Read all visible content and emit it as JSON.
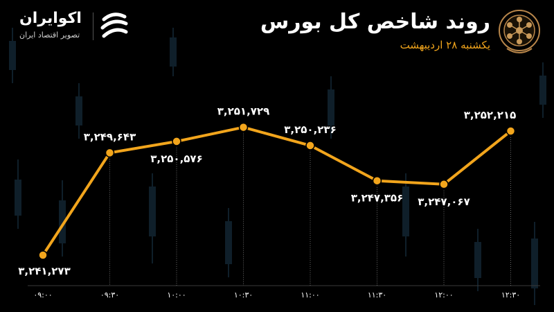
{
  "header": {
    "title": "روند شاخص کل بورس",
    "subtitle": "یکشنبه ۲۸ اردیبهشت"
  },
  "brand": {
    "name": "اکوایران",
    "tagline": "تصویر اقتصاد ایران"
  },
  "colors": {
    "accent": "#f2a51c",
    "background": "#000000",
    "text": "#ffffff"
  },
  "chart_data": {
    "type": "line",
    "title": "",
    "xlabel": "",
    "ylabel": "",
    "categories": [
      "۰۹:۰۰",
      "۰۹:۳۰",
      "۱۰:۰۰",
      "۱۰:۳۰",
      "۱۱:۰۰",
      "۱۱:۳۰",
      "۱۲:۰۰",
      "۱۲:۳۰"
    ],
    "x": [
      "09:00",
      "09:30",
      "10:00",
      "10:30",
      "11:00",
      "11:30",
      "12:00",
      "12:30"
    ],
    "values": [
      3241273,
      3249643,
      3250576,
      3251729,
      3250236,
      3247356,
      3247067,
      3252215
    ],
    "labels": [
      "۳,۲۴۱,۲۷۳",
      "۳,۲۴۹,۶۴۳",
      "۳,۲۵۰,۵۷۶",
      "۳,۲۵۱,۷۲۹",
      "۳,۲۵۰,۲۳۶",
      "۳,۲۴۷,۳۵۶",
      "۳,۲۴۷,۰۶۷",
      "۳,۲۵۲,۲۱۵"
    ],
    "label_position": [
      "below",
      "above",
      "below",
      "above",
      "above",
      "below",
      "below",
      "above"
    ],
    "ylim": [
      3240000,
      3254000
    ],
    "grid": false,
    "line_color": "#f2a51c"
  }
}
